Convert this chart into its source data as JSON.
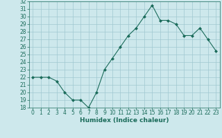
{
  "x": [
    0,
    1,
    2,
    3,
    4,
    5,
    6,
    7,
    8,
    9,
    10,
    11,
    12,
    13,
    14,
    15,
    16,
    17,
    18,
    19,
    20,
    21,
    22,
    23
  ],
  "y": [
    22,
    22,
    22,
    21.5,
    20,
    19,
    19,
    18,
    20,
    23,
    24.5,
    26,
    27.5,
    28.5,
    30,
    31.5,
    29.5,
    29.5,
    29,
    27.5,
    27.5,
    28.5,
    27,
    25.5
  ],
  "xlabel": "Humidex (Indice chaleur)",
  "ylim": [
    18,
    32
  ],
  "xlim": [
    -0.5,
    23.5
  ],
  "yticks": [
    18,
    19,
    20,
    21,
    22,
    23,
    24,
    25,
    26,
    27,
    28,
    29,
    30,
    31,
    32
  ],
  "xticks": [
    0,
    1,
    2,
    3,
    4,
    5,
    6,
    7,
    8,
    9,
    10,
    11,
    12,
    13,
    14,
    15,
    16,
    17,
    18,
    19,
    20,
    21,
    22,
    23
  ],
  "line_color": "#1a6b5a",
  "marker_color": "#1a6b5a",
  "bg_color": "#cde8ec",
  "grid_color": "#a0c8d0",
  "spine_color": "#1a6b5a",
  "label_color": "#1a6b5a",
  "tick_fontsize": 5.5,
  "xlabel_fontsize": 6.5
}
